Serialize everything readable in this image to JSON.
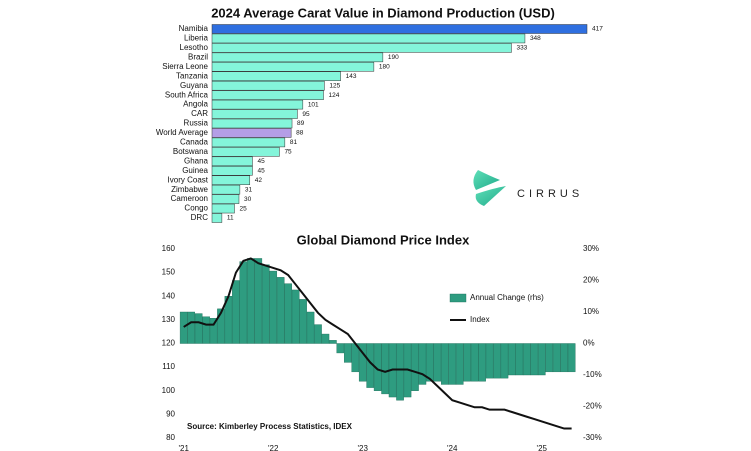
{
  "logo": "CIRRUS",
  "chart_data": [
    {
      "type": "bar",
      "horizontal": true,
      "title": "2024 Average Carat Value in Diamond Production (USD)",
      "categories": [
        "Namibia",
        "Liberia",
        "Lesotho",
        "Brazil",
        "Sierra Leone",
        "Tanzania",
        "Guyana",
        "South Africa",
        "Angola",
        "CAR",
        "Russia",
        "World Average",
        "Canada",
        "Botswana",
        "Ghana",
        "Guinea",
        "Ivory Coast",
        "Zimbabwe",
        "Cameroon",
        "Congo",
        "DRC"
      ],
      "values": [
        417,
        348,
        333,
        190,
        180,
        143,
        125,
        124,
        101,
        95,
        89,
        88,
        81,
        75,
        45,
        45,
        42,
        31,
        30,
        25,
        11
      ],
      "colors": [
        "#2f6fe0",
        "#84f5da",
        "#84f5da",
        "#84f5da",
        "#84f5da",
        "#84f5da",
        "#84f5da",
        "#84f5da",
        "#84f5da",
        "#84f5da",
        "#84f5da",
        "#b49ee6",
        "#84f5da",
        "#84f5da",
        "#84f5da",
        "#84f5da",
        "#84f5da",
        "#84f5da",
        "#84f5da",
        "#84f5da",
        "#84f5da"
      ]
    },
    {
      "type": "combo",
      "title": "Global Diamond Price Index",
      "annotation": "Source: Kimberley Process Statistics, IDEX",
      "categories": [
        "'21",
        null,
        null,
        null,
        null,
        null,
        null,
        null,
        null,
        null,
        null,
        null,
        "'22",
        null,
        null,
        null,
        null,
        null,
        null,
        null,
        null,
        null,
        null,
        null,
        "'23",
        null,
        null,
        null,
        null,
        null,
        null,
        null,
        null,
        null,
        null,
        null,
        "'24",
        null,
        null,
        null,
        null,
        null,
        null,
        null,
        null,
        null,
        null,
        null,
        "'25",
        null,
        null,
        null,
        null
      ],
      "ylim": [
        80,
        160
      ],
      "yticks": [
        80,
        90,
        100,
        110,
        120,
        130,
        140,
        150,
        160
      ],
      "y2lim": [
        -30,
        30
      ],
      "y2ticks": [
        {
          "value": -30,
          "label": "-30%"
        },
        {
          "value": -20,
          "label": "-20%"
        },
        {
          "value": -10,
          "label": "-10%"
        },
        {
          "value": 0,
          "label": "0%"
        },
        {
          "value": 10,
          "label": "10%"
        },
        {
          "value": 20,
          "label": "20%"
        },
        {
          "value": 30,
          "label": "30%"
        }
      ],
      "legend": "upper right",
      "series": [
        {
          "name": "Annual Change (rhs)",
          "type": "bar",
          "axis": "y2",
          "color": "#2e9c80",
          "values": [
            10,
            10,
            9.5,
            8.5,
            8,
            11,
            15,
            20,
            26,
            27,
            27,
            25,
            23,
            21,
            19,
            17,
            14,
            10,
            6,
            3,
            1,
            -3,
            -6,
            -9,
            -12,
            -14,
            -15,
            -16,
            -17,
            -18,
            -17,
            -15,
            -13,
            -12,
            -12,
            -13,
            -13,
            -13,
            -12,
            -12,
            -12,
            -11,
            -11,
            -11,
            -10,
            -10,
            -10,
            -10,
            -10,
            -9,
            -9,
            -9,
            -9
          ]
        },
        {
          "name": "Index",
          "type": "line",
          "color": "#111111",
          "values": [
            127,
            129,
            129,
            128,
            128,
            133,
            140,
            150,
            155,
            156,
            154,
            153,
            152,
            151,
            149,
            145,
            141,
            137,
            133,
            130,
            128,
            126,
            124,
            120,
            116,
            112,
            109,
            108,
            109,
            109,
            109,
            108,
            107,
            105,
            102,
            99,
            96,
            95,
            94,
            93,
            93,
            92,
            92,
            92,
            91,
            90,
            89,
            88,
            87,
            86,
            85,
            84,
            84
          ]
        }
      ]
    }
  ]
}
